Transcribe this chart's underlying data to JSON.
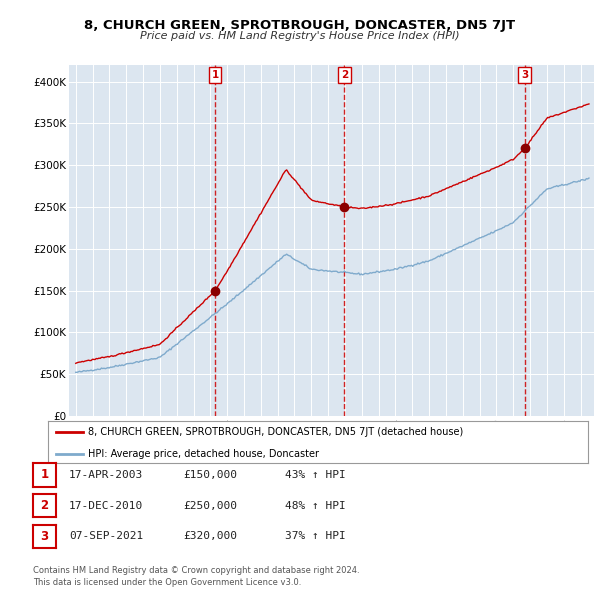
{
  "title": "8, CHURCH GREEN, SPROTBROUGH, DONCASTER, DN5 7JT",
  "subtitle": "Price paid vs. HM Land Registry's House Price Index (HPI)",
  "background_color": "#ffffff",
  "plot_bg_color": "#dce6f0",
  "grid_color": "#ffffff",
  "legend_label_red": "8, CHURCH GREEN, SPROTBROUGH, DONCASTER, DN5 7JT (detached house)",
  "legend_label_blue": "HPI: Average price, detached house, Doncaster",
  "transactions": [
    {
      "num": 1,
      "date": "17-APR-2003",
      "price": "£150,000",
      "pct": "43%",
      "dir": "↑",
      "year": 2003.29
    },
    {
      "num": 2,
      "date": "17-DEC-2010",
      "price": "£250,000",
      "pct": "48%",
      "dir": "↑",
      "year": 2010.96
    },
    {
      "num": 3,
      "date": "07-SEP-2021",
      "price": "£320,000",
      "pct": "37%",
      "dir": "↑",
      "year": 2021.68
    }
  ],
  "trans_prices": [
    150000,
    250000,
    320000
  ],
  "footer": "Contains HM Land Registry data © Crown copyright and database right 2024.\nThis data is licensed under the Open Government Licence v3.0.",
  "ylim": [
    0,
    420000
  ],
  "yticks": [
    0,
    50000,
    100000,
    150000,
    200000,
    250000,
    300000,
    350000,
    400000
  ],
  "ytick_labels": [
    "£0",
    "£50K",
    "£100K",
    "£150K",
    "£200K",
    "£250K",
    "£300K",
    "£350K",
    "£400K"
  ],
  "xlim_start": 1994.6,
  "xlim_end": 2025.8
}
